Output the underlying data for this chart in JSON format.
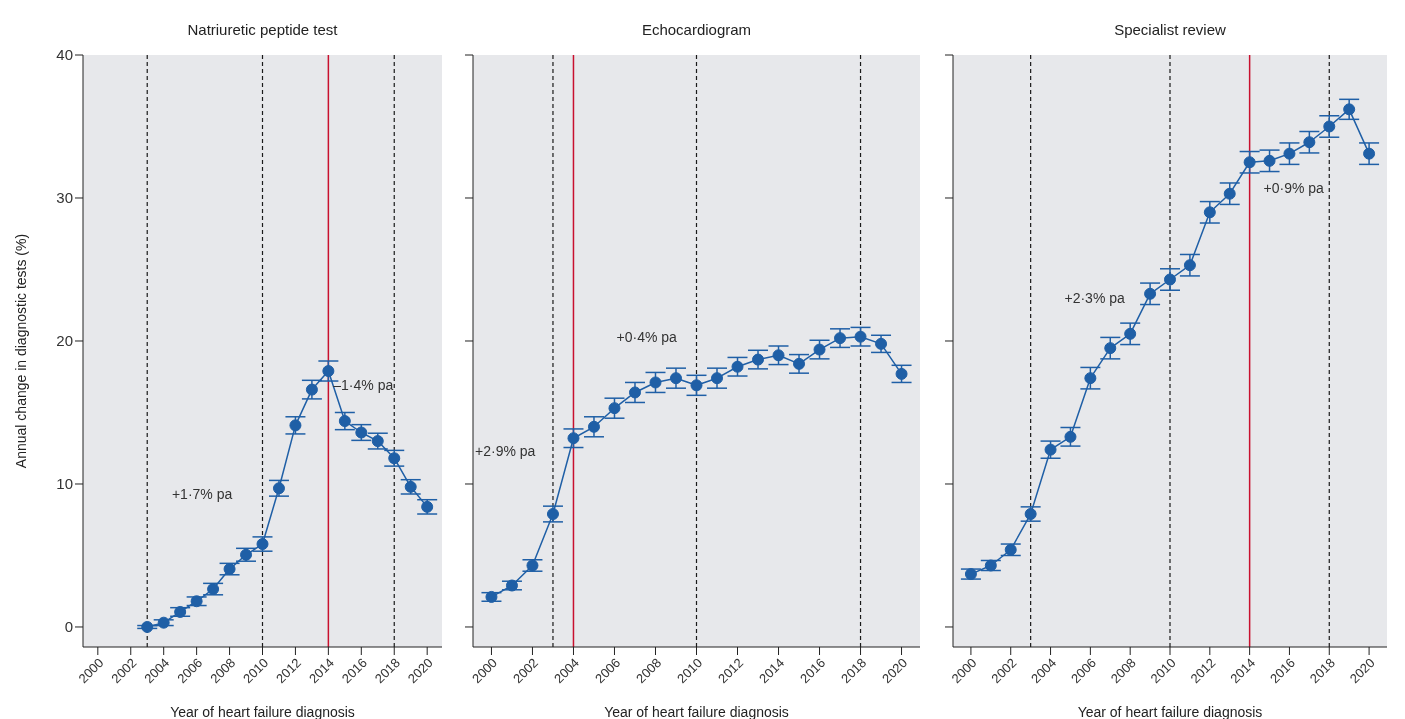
{
  "chart_data": [
    {
      "type": "line",
      "title": "Natriuretic peptide test",
      "xlabel": "Year of heart failure diagnosis",
      "ylabel": "Annual change in diagnostic tests (%)",
      "xlim": [
        1999.1,
        2020.9
      ],
      "xticks": [
        2000,
        2002,
        2004,
        2006,
        2008,
        2010,
        2012,
        2014,
        2016,
        2018,
        2020
      ],
      "ylim": [
        -1.4,
        40
      ],
      "yticks": [
        0,
        10,
        20,
        30,
        40
      ],
      "marker": "circle",
      "line_style": "solid",
      "series": [
        {
          "color": "#1f5fa6",
          "x": [
            2003,
            2004,
            2005,
            2006,
            2007,
            2008,
            2009,
            2010,
            2011,
            2012,
            2013,
            2014,
            2015,
            2016,
            2017,
            2018,
            2019,
            2020
          ],
          "values": [
            0,
            0.3,
            1.05,
            1.8,
            2.65,
            4.05,
            5.05,
            5.8,
            9.7,
            14.1,
            16.6,
            17.9,
            14.4,
            13.6,
            13.0,
            11.8,
            9.8,
            8.4
          ],
          "errors": [
            0.1,
            0.2,
            0.3,
            0.3,
            0.4,
            0.4,
            0.45,
            0.5,
            0.55,
            0.6,
            0.65,
            0.7,
            0.6,
            0.55,
            0.55,
            0.55,
            0.5,
            0.5
          ]
        }
      ],
      "ref_lines": [
        {
          "axis": "x",
          "value": 2003,
          "color": "#1a1a1a",
          "line_style": "dashed"
        },
        {
          "axis": "x",
          "value": 2010,
          "color": "#1a1a1a",
          "line_style": "dashed"
        },
        {
          "axis": "x",
          "value": 2014,
          "color": "#c8102e",
          "line_style": "solid"
        },
        {
          "axis": "x",
          "value": 2018,
          "color": "#1a1a1a",
          "line_style": "dashed"
        }
      ],
      "annotations": [
        "+1·7% pa",
        "–1·4% pa"
      ]
    },
    {
      "type": "line",
      "title": "Echocardiogram",
      "xlabel": "Year of heart failure diagnosis",
      "xlim": [
        1999.1,
        2020.9
      ],
      "xticks": [
        2000,
        2002,
        2004,
        2006,
        2008,
        2010,
        2012,
        2014,
        2016,
        2018,
        2020
      ],
      "ylim": [
        -1.4,
        40
      ],
      "yticks": [
        0,
        10,
        20,
        30,
        40
      ],
      "tick_labels": "x",
      "marker": "circle",
      "line_style": "solid",
      "series": [
        {
          "color": "#1f5fa6",
          "x": [
            2000,
            2001,
            2002,
            2003,
            2004,
            2005,
            2006,
            2007,
            2008,
            2009,
            2010,
            2011,
            2012,
            2013,
            2014,
            2015,
            2016,
            2017,
            2018,
            2019,
            2020
          ],
          "values": [
            2.1,
            2.9,
            4.3,
            7.9,
            13.2,
            14.0,
            15.3,
            16.4,
            17.1,
            17.4,
            16.9,
            17.4,
            18.2,
            18.7,
            19.0,
            18.4,
            19.4,
            20.2,
            20.3,
            19.8,
            17.7
          ],
          "errors": [
            0.3,
            0.3,
            0.4,
            0.55,
            0.65,
            0.7,
            0.7,
            0.7,
            0.7,
            0.7,
            0.7,
            0.7,
            0.65,
            0.65,
            0.65,
            0.65,
            0.65,
            0.65,
            0.65,
            0.6,
            0.6
          ]
        }
      ],
      "ref_lines": [
        {
          "axis": "x",
          "value": 2003,
          "color": "#1a1a1a",
          "line_style": "dashed"
        },
        {
          "axis": "x",
          "value": 2004,
          "color": "#c8102e",
          "line_style": "solid"
        },
        {
          "axis": "x",
          "value": 2010,
          "color": "#1a1a1a",
          "line_style": "dashed"
        },
        {
          "axis": "x",
          "value": 2018,
          "color": "#1a1a1a",
          "line_style": "dashed"
        }
      ],
      "annotations": [
        "+2·9% pa",
        "+0·4% pa"
      ]
    },
    {
      "type": "line",
      "title": "Specialist review",
      "xlabel": "Year of heart failure diagnosis",
      "xlim": [
        1999.1,
        2020.9
      ],
      "xticks": [
        2000,
        2002,
        2004,
        2006,
        2008,
        2010,
        2012,
        2014,
        2016,
        2018,
        2020
      ],
      "ylim": [
        -1.4,
        40
      ],
      "yticks": [
        0,
        10,
        20,
        30,
        40
      ],
      "tick_labels": "x",
      "marker": "circle",
      "line_style": "solid",
      "series": [
        {
          "color": "#1f5fa6",
          "x": [
            2000,
            2001,
            2002,
            2003,
            2004,
            2005,
            2006,
            2007,
            2008,
            2009,
            2010,
            2011,
            2012,
            2013,
            2014,
            2015,
            2016,
            2017,
            2018,
            2019,
            2020
          ],
          "values": [
            3.7,
            4.3,
            5.4,
            7.9,
            12.4,
            13.3,
            17.4,
            19.5,
            20.5,
            23.3,
            24.3,
            25.3,
            29.0,
            30.3,
            32.5,
            32.6,
            33.1,
            33.9,
            35.0,
            36.2,
            33.1
          ],
          "errors": [
            0.35,
            0.35,
            0.4,
            0.5,
            0.6,
            0.65,
            0.75,
            0.75,
            0.75,
            0.75,
            0.75,
            0.75,
            0.75,
            0.75,
            0.75,
            0.75,
            0.75,
            0.75,
            0.75,
            0.7,
            0.75
          ]
        }
      ],
      "ref_lines": [
        {
          "axis": "x",
          "value": 2003,
          "color": "#1a1a1a",
          "line_style": "dashed"
        },
        {
          "axis": "x",
          "value": 2010,
          "color": "#1a1a1a",
          "line_style": "dashed"
        },
        {
          "axis": "x",
          "value": 2014,
          "color": "#c8102e",
          "line_style": "solid"
        },
        {
          "axis": "x",
          "value": 2018,
          "color": "#1a1a1a",
          "line_style": "dashed"
        }
      ],
      "annotations": [
        "+2·3% pa",
        "+0·9% pa"
      ]
    }
  ]
}
